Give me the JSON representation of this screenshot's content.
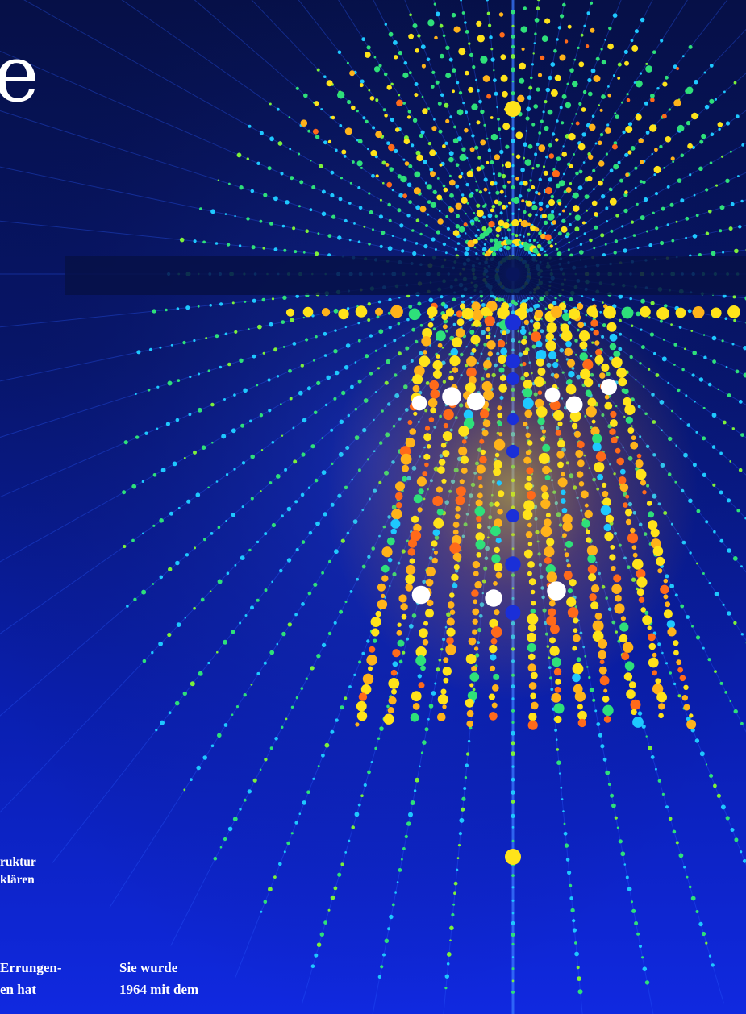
{
  "headline": {
    "fragment": "e"
  },
  "caption": {
    "lines": [
      "ruktur",
      "klären"
    ]
  },
  "body": {
    "column_1": [
      "Errungen-",
      "en hat"
    ],
    "column_2": [
      "Sie wurde",
      "1964 mit dem"
    ]
  },
  "colors": {
    "background_top": "#061047",
    "background_bottom": "#1029e0",
    "lattice_lines": "#2b5bff",
    "atom_palette": [
      "#1ec8ff",
      "#2ee07a",
      "#7df03a",
      "#ffe31a",
      "#ffb31a",
      "#ff6a1a",
      "#ffffff",
      "#1a2fd8"
    ]
  }
}
